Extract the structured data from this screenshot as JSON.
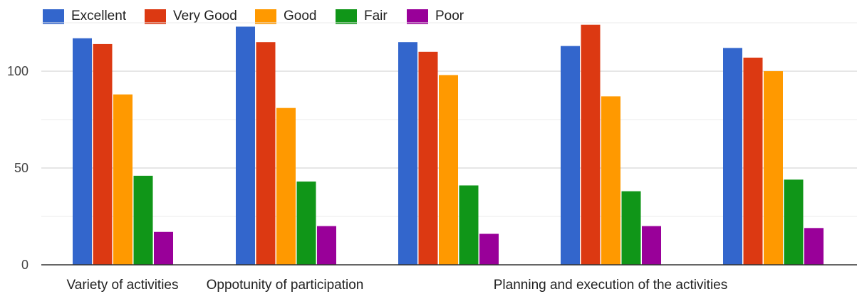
{
  "chart_data": {
    "type": "bar",
    "categories": [
      "Variety of activities",
      "Oppotunity of participation",
      "",
      "Planning and execution of the activities",
      ""
    ],
    "series": [
      {
        "name": "Excellent",
        "color": "#3366cc",
        "values": [
          117,
          123,
          115,
          113,
          112
        ]
      },
      {
        "name": "Very Good",
        "color": "#dc3912",
        "values": [
          114,
          115,
          110,
          124,
          107
        ]
      },
      {
        "name": "Good",
        "color": "#ff9900",
        "values": [
          88,
          81,
          98,
          87,
          100
        ]
      },
      {
        "name": "Fair",
        "color": "#109618",
        "values": [
          46,
          43,
          41,
          38,
          44
        ]
      },
      {
        "name": "Poor",
        "color": "#990099",
        "values": [
          17,
          20,
          16,
          20,
          19
        ]
      }
    ],
    "yticks": [
      0,
      50,
      100
    ],
    "ylim": [
      0,
      125
    ],
    "grid": true,
    "legend_position": "top-left",
    "title": "",
    "xlabel": "",
    "ylabel": ""
  }
}
